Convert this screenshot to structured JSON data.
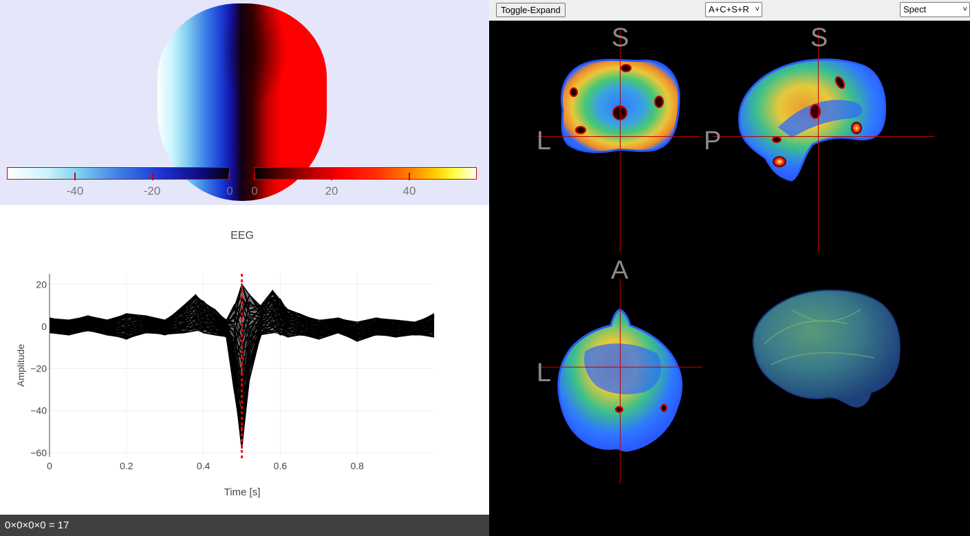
{
  "topomap": {
    "colorbar_negative_labels": [
      "-40",
      "-20",
      "0"
    ],
    "colorbar_positive_labels": [
      "0",
      "20",
      "40"
    ],
    "colors": {
      "background": "#e5e6fa",
      "negative": "#1a3fd6",
      "positive": "#ff0000"
    }
  },
  "chart_data": {
    "type": "line",
    "title": "EEG",
    "xlabel": "Time [s]",
    "ylabel": "Amplitude",
    "xlim": [
      0,
      1.0
    ],
    "ylim": [
      -62,
      25
    ],
    "x_ticks": [
      "0",
      "0.2",
      "0.4",
      "0.6",
      "0.8"
    ],
    "y_ticks": [
      "20",
      "0",
      "−20",
      "−40",
      "−60"
    ],
    "series_envelope": {
      "x": [
        0,
        0.05,
        0.1,
        0.15,
        0.2,
        0.25,
        0.3,
        0.35,
        0.38,
        0.4,
        0.43,
        0.46,
        0.48,
        0.5,
        0.52,
        0.55,
        0.58,
        0.6,
        0.62,
        0.65,
        0.7,
        0.75,
        0.8,
        0.85,
        0.9,
        0.95,
        1.0
      ],
      "upper": [
        4,
        3,
        5,
        3,
        6,
        5,
        3,
        10,
        15,
        12,
        8,
        3,
        10,
        20,
        15,
        10,
        17,
        13,
        8,
        6,
        3,
        4,
        2,
        4,
        3,
        2,
        6
      ],
      "lower": [
        -3,
        -4,
        -2,
        -4,
        -6,
        -3,
        -4,
        -3,
        -2,
        -3,
        -4,
        -5,
        -30,
        -58,
        -25,
        -4,
        -3,
        -4,
        -5,
        -4,
        -6,
        -3,
        -7,
        -4,
        -5,
        -4,
        -5
      ]
    },
    "cursor": {
      "x": 0.5,
      "color": "#ff0000"
    }
  },
  "status": {
    "text": "0×0×0×0 = 17"
  },
  "toolbar": {
    "toggle_label": "Toggle-Expand",
    "layout_select": "A+C+S+R",
    "modality_select": "Spect"
  },
  "viewer": {
    "orientation_labels": {
      "coronal_top": "S",
      "coronal_left": "L",
      "sagittal_top": "S",
      "sagittal_left": "P",
      "axial_top": "A",
      "axial_left": "L"
    },
    "crosshair_color": "#c00000"
  }
}
